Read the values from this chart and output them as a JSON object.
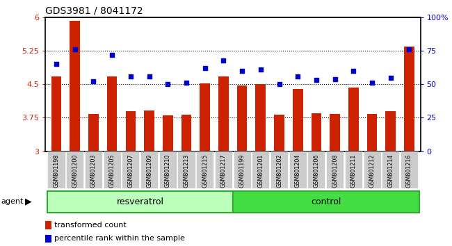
{
  "title": "GDS3981 / 8041172",
  "samples": [
    "GSM801198",
    "GSM801200",
    "GSM801203",
    "GSM801205",
    "GSM801207",
    "GSM801209",
    "GSM801210",
    "GSM801213",
    "GSM801215",
    "GSM801217",
    "GSM801199",
    "GSM801201",
    "GSM801202",
    "GSM801204",
    "GSM801206",
    "GSM801208",
    "GSM801211",
    "GSM801212",
    "GSM801214",
    "GSM801216"
  ],
  "transformed_count": [
    4.68,
    5.92,
    3.83,
    4.68,
    3.9,
    3.92,
    3.8,
    3.82,
    4.52,
    4.68,
    4.48,
    4.5,
    3.82,
    4.4,
    3.85,
    3.84,
    4.42,
    3.83,
    3.9,
    5.35
  ],
  "percentile_rank": [
    65,
    76,
    52,
    72,
    56,
    56,
    50,
    51,
    62,
    68,
    60,
    61,
    50,
    56,
    53,
    54,
    60,
    51,
    55,
    76
  ],
  "bar_color": "#cc2200",
  "dot_color": "#0000cc",
  "ylim_left": [
    3.0,
    6.0
  ],
  "ylim_right": [
    0,
    100
  ],
  "yticks_left": [
    3.0,
    3.75,
    4.5,
    5.25,
    6.0
  ],
  "ytick_labels_left": [
    "3",
    "3.75",
    "4.5",
    "5.25",
    "6"
  ],
  "yticks_right": [
    0,
    25,
    50,
    75,
    100
  ],
  "ytick_labels_right": [
    "0",
    "25",
    "50",
    "75",
    "100%"
  ],
  "hlines": [
    3.75,
    4.5,
    5.25
  ],
  "group1_label": "resveratrol",
  "group2_label": "control",
  "group1_count": 10,
  "group2_count": 10,
  "agent_label": "agent",
  "legend_bar_label": "transformed count",
  "legend_dot_label": "percentile rank within the sample",
  "title_color": "#000000",
  "group1_bg": "#bbffbb",
  "group2_bg": "#44dd44",
  "xticklabel_bg": "#cccccc",
  "bar_bottom": 3.0,
  "bar_width": 0.55,
  "dot_size": 20,
  "figsize": [
    6.5,
    3.54
  ],
  "dpi": 100
}
